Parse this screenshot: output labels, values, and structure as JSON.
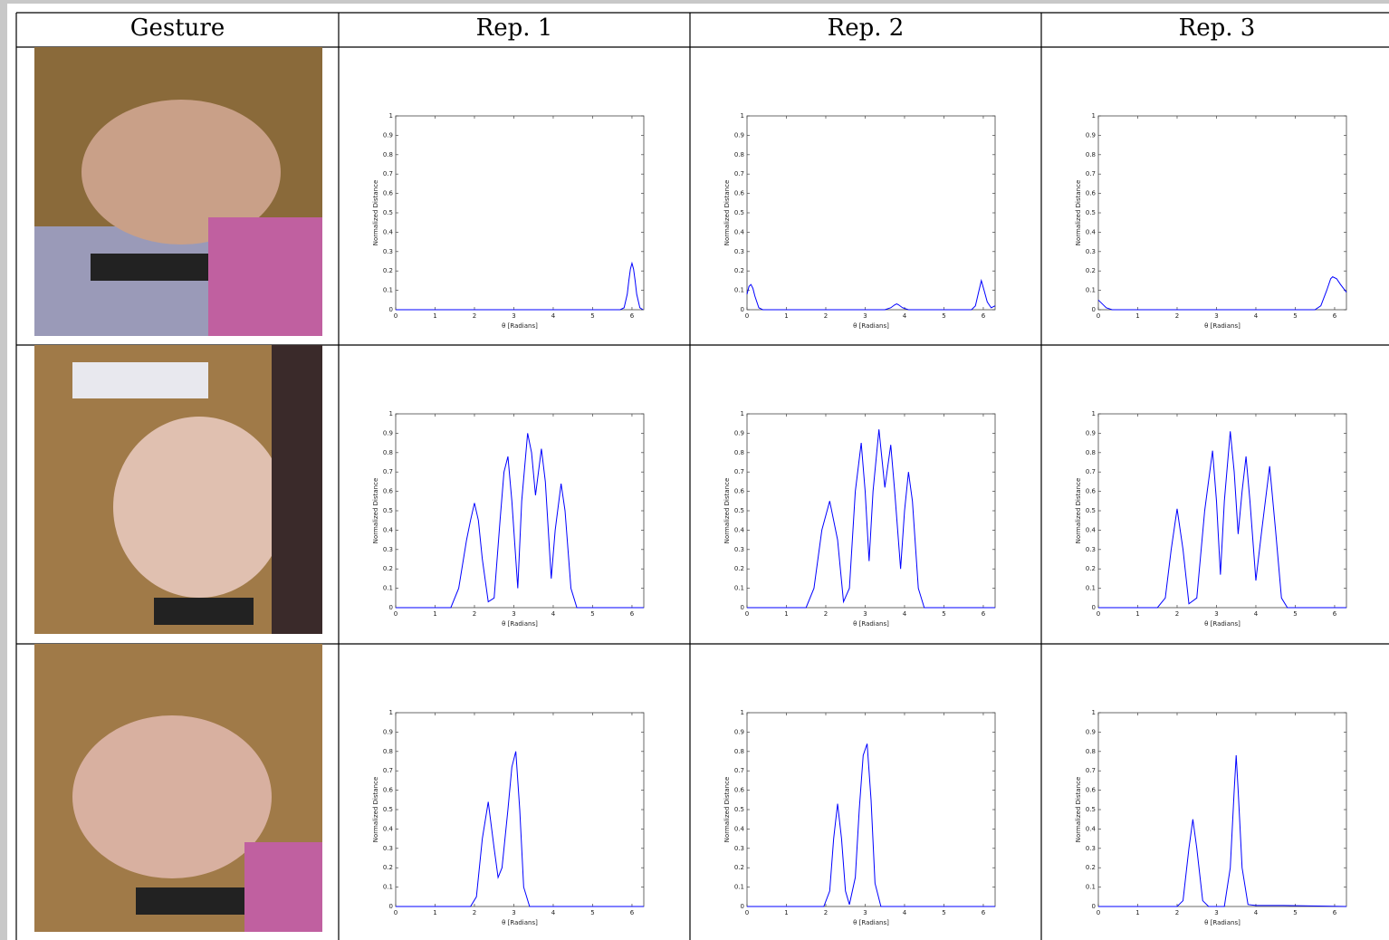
{
  "headers": [
    "Gesture",
    "Rep. 1",
    "Rep. 2",
    "Rep. 3"
  ],
  "chart_data": [
    {
      "type": "line",
      "xlabel": "θ [Radians]",
      "ylabel": "Normalized Distance",
      "xlim": [
        0,
        6.3
      ],
      "ylim": [
        0,
        1
      ],
      "xticks": [
        0,
        1,
        2,
        3,
        4,
        5,
        6
      ],
      "yticks": [
        0,
        0.1,
        0.2,
        0.3,
        0.4,
        0.5,
        0.6,
        0.7,
        0.8,
        0.9,
        1
      ],
      "x": [
        0,
        5.7,
        5.8,
        5.88,
        5.92,
        5.96,
        6.0,
        6.04,
        6.08,
        6.12,
        6.2,
        6.28
      ],
      "series": [
        {
          "color": "#0000ff",
          "values": [
            0,
            0,
            0.01,
            0.08,
            0.15,
            0.21,
            0.24,
            0.21,
            0.15,
            0.08,
            0.01,
            0
          ]
        }
      ]
    },
    {
      "type": "line",
      "xlabel": "θ [Radians]",
      "ylabel": "Normalized Distance",
      "xlim": [
        0,
        6.3
      ],
      "ylim": [
        0,
        1
      ],
      "xticks": [
        0,
        1,
        2,
        3,
        4,
        5,
        6
      ],
      "yticks": [
        0,
        0.1,
        0.2,
        0.3,
        0.4,
        0.5,
        0.6,
        0.7,
        0.8,
        0.9,
        1
      ],
      "x": [
        0,
        0.05,
        0.1,
        0.15,
        0.2,
        0.3,
        0.4,
        3.5,
        3.65,
        3.75,
        3.8,
        3.85,
        3.95,
        4.1,
        5.7,
        5.8,
        5.88,
        5.95,
        6.02,
        6.1,
        6.2,
        6.3
      ],
      "series": [
        {
          "color": "#0000ff",
          "values": [
            0.08,
            0.12,
            0.13,
            0.11,
            0.07,
            0.01,
            0,
            0,
            0.01,
            0.025,
            0.03,
            0.025,
            0.01,
            0,
            0,
            0.02,
            0.09,
            0.15,
            0.1,
            0.04,
            0.01,
            0.02
          ]
        }
      ]
    },
    {
      "type": "line",
      "xlabel": "θ [Radians]",
      "ylabel": "Normalized Distance",
      "xlim": [
        0,
        6.3
      ],
      "ylim": [
        0,
        1
      ],
      "xticks": [
        0,
        1,
        2,
        3,
        4,
        5,
        6
      ],
      "yticks": [
        0,
        0.1,
        0.2,
        0.3,
        0.4,
        0.5,
        0.6,
        0.7,
        0.8,
        0.9,
        1
      ],
      "x": [
        0,
        0.1,
        0.2,
        0.35,
        5.5,
        5.65,
        5.8,
        5.9,
        5.95,
        6.05,
        6.15,
        6.3
      ],
      "series": [
        {
          "color": "#0000ff",
          "values": [
            0.05,
            0.03,
            0.01,
            0,
            0,
            0.02,
            0.1,
            0.16,
            0.17,
            0.16,
            0.13,
            0.09
          ]
        }
      ]
    },
    {
      "type": "line",
      "xlabel": "θ [Radians]",
      "ylabel": "Normalized Distance",
      "xlim": [
        0,
        6.3
      ],
      "ylim": [
        0,
        1
      ],
      "xticks": [
        0,
        1,
        2,
        3,
        4,
        5,
        6
      ],
      "yticks": [
        0,
        0.1,
        0.2,
        0.3,
        0.4,
        0.5,
        0.6,
        0.7,
        0.8,
        0.9,
        1
      ],
      "x": [
        0,
        1.4,
        1.6,
        1.8,
        1.9,
        2.0,
        2.1,
        2.2,
        2.35,
        2.5,
        2.65,
        2.75,
        2.85,
        2.95,
        3.1,
        3.2,
        3.35,
        3.45,
        3.55,
        3.7,
        3.8,
        3.95,
        4.05,
        4.2,
        4.3,
        4.45,
        4.6,
        6.3
      ],
      "series": [
        {
          "color": "#0000ff",
          "values": [
            0,
            0,
            0.1,
            0.35,
            0.45,
            0.54,
            0.45,
            0.25,
            0.03,
            0.05,
            0.45,
            0.7,
            0.78,
            0.55,
            0.1,
            0.55,
            0.9,
            0.8,
            0.58,
            0.82,
            0.65,
            0.15,
            0.4,
            0.64,
            0.5,
            0.1,
            0,
            0
          ]
        }
      ]
    },
    {
      "type": "line",
      "xlabel": "θ [Radians]",
      "ylabel": "Normalized Distance",
      "xlim": [
        0,
        6.3
      ],
      "ylim": [
        0,
        1
      ],
      "xticks": [
        0,
        1,
        2,
        3,
        4,
        5,
        6
      ],
      "yticks": [
        0,
        0.1,
        0.2,
        0.3,
        0.4,
        0.5,
        0.6,
        0.7,
        0.8,
        0.9,
        1
      ],
      "x": [
        0,
        1.5,
        1.7,
        1.9,
        2.1,
        2.3,
        2.45,
        2.6,
        2.75,
        2.9,
        3.0,
        3.1,
        3.2,
        3.35,
        3.5,
        3.65,
        3.75,
        3.9,
        4.0,
        4.1,
        4.2,
        4.35,
        4.5,
        6.3
      ],
      "series": [
        {
          "color": "#0000ff",
          "values": [
            0,
            0,
            0.1,
            0.4,
            0.55,
            0.35,
            0.03,
            0.1,
            0.6,
            0.85,
            0.6,
            0.24,
            0.6,
            0.92,
            0.62,
            0.84,
            0.6,
            0.2,
            0.5,
            0.7,
            0.55,
            0.1,
            0,
            0
          ]
        }
      ]
    },
    {
      "type": "line",
      "xlabel": "θ [Radians]",
      "ylabel": "Normalized Distance",
      "xlim": [
        0,
        6.3
      ],
      "ylim": [
        0,
        1
      ],
      "xticks": [
        0,
        1,
        2,
        3,
        4,
        5,
        6
      ],
      "yticks": [
        0,
        0.1,
        0.2,
        0.3,
        0.4,
        0.5,
        0.6,
        0.7,
        0.8,
        0.9,
        1
      ],
      "x": [
        0,
        1.5,
        1.7,
        1.85,
        2.0,
        2.15,
        2.3,
        2.5,
        2.7,
        2.9,
        3.0,
        3.1,
        3.2,
        3.35,
        3.45,
        3.55,
        3.65,
        3.75,
        3.85,
        4.0,
        4.15,
        4.35,
        4.5,
        4.65,
        4.8,
        6.3
      ],
      "series": [
        {
          "color": "#0000ff",
          "values": [
            0,
            0,
            0.05,
            0.3,
            0.51,
            0.3,
            0.02,
            0.05,
            0.5,
            0.81,
            0.55,
            0.17,
            0.55,
            0.91,
            0.7,
            0.38,
            0.6,
            0.78,
            0.55,
            0.14,
            0.4,
            0.73,
            0.4,
            0.05,
            0,
            0
          ]
        }
      ]
    },
    {
      "type": "line",
      "xlabel": "θ [Radians]",
      "ylabel": "Normalized Distance",
      "xlim": [
        0,
        6.3
      ],
      "ylim": [
        0,
        1
      ],
      "xticks": [
        0,
        1,
        2,
        3,
        4,
        5,
        6
      ],
      "yticks": [
        0,
        0.1,
        0.2,
        0.3,
        0.4,
        0.5,
        0.6,
        0.7,
        0.8,
        0.9,
        1
      ],
      "x": [
        0,
        1.9,
        2.05,
        2.2,
        2.35,
        2.5,
        2.6,
        2.7,
        2.85,
        2.95,
        3.05,
        3.15,
        3.25,
        3.4,
        6.3
      ],
      "series": [
        {
          "color": "#0000ff",
          "values": [
            0,
            0,
            0.05,
            0.35,
            0.54,
            0.3,
            0.15,
            0.2,
            0.5,
            0.72,
            0.8,
            0.5,
            0.1,
            0,
            0
          ]
        }
      ]
    },
    {
      "type": "line",
      "xlabel": "θ [Radians]",
      "ylabel": "Normalized Distance",
      "xlim": [
        0,
        6.3
      ],
      "ylim": [
        0,
        1
      ],
      "xticks": [
        0,
        1,
        2,
        3,
        4,
        5,
        6
      ],
      "yticks": [
        0,
        0.1,
        0.2,
        0.3,
        0.4,
        0.5,
        0.6,
        0.7,
        0.8,
        0.9,
        1
      ],
      "x": [
        0,
        1.95,
        2.1,
        2.2,
        2.3,
        2.4,
        2.5,
        2.6,
        2.75,
        2.85,
        2.95,
        3.05,
        3.15,
        3.25,
        3.4,
        6.3
      ],
      "series": [
        {
          "color": "#0000ff",
          "values": [
            0,
            0,
            0.08,
            0.35,
            0.53,
            0.35,
            0.08,
            0.01,
            0.15,
            0.5,
            0.78,
            0.84,
            0.55,
            0.12,
            0,
            0
          ]
        }
      ]
    },
    {
      "type": "line",
      "xlabel": "θ [Radians]",
      "ylabel": "Normalized Distance",
      "xlim": [
        0,
        6.3
      ],
      "ylim": [
        0,
        1
      ],
      "xticks": [
        0,
        1,
        2,
        3,
        4,
        5,
        6
      ],
      "yticks": [
        0,
        0.1,
        0.2,
        0.3,
        0.4,
        0.5,
        0.6,
        0.7,
        0.8,
        0.9,
        1
      ],
      "x": [
        0,
        2.0,
        2.15,
        2.3,
        2.4,
        2.5,
        2.65,
        2.8,
        3.2,
        3.35,
        3.45,
        3.5,
        3.55,
        3.65,
        3.8,
        4.0,
        4.7,
        6.3
      ],
      "series": [
        {
          "color": "#0000ff",
          "values": [
            0,
            0,
            0.03,
            0.3,
            0.45,
            0.3,
            0.03,
            0,
            0,
            0.2,
            0.6,
            0.78,
            0.6,
            0.2,
            0.01,
            0.005,
            0.005,
            0
          ]
        }
      ]
    }
  ]
}
